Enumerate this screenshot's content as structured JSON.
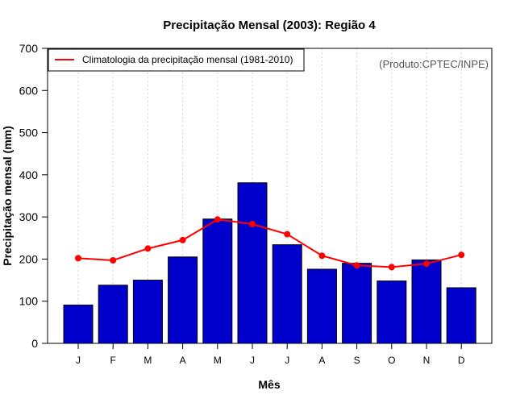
{
  "chart_data": {
    "type": "bar",
    "title": "Precipitação Mensal (2003): Região 4",
    "xlabel": "Mês",
    "ylabel": "Precipitação mensal (mm)",
    "ylim": [
      0,
      700
    ],
    "yticks": [
      0,
      100,
      200,
      300,
      400,
      500,
      600,
      700
    ],
    "categories": [
      "J",
      "F",
      "M",
      "A",
      "M",
      "J",
      "J",
      "A",
      "S",
      "O",
      "N",
      "D"
    ],
    "series": [
      {
        "name": "Precipitação mensal 2003",
        "type": "bar",
        "color": "#0000CD",
        "values": [
          91,
          138,
          150,
          205,
          295,
          381,
          234,
          176,
          190,
          148,
          198,
          132
        ]
      },
      {
        "name": "Climatologia da precipitação mensal (1981-2010)",
        "type": "line",
        "color": "#FF0000",
        "values": [
          202,
          197,
          225,
          245,
          294,
          283,
          259,
          208,
          185,
          181,
          189,
          210
        ]
      }
    ],
    "legend": {
      "position": "top-left",
      "entries": [
        "Climatologia da precipitação mensal (1981-2010)"
      ]
    },
    "annotation": "(Produto:CPTEC/INPE)",
    "grid": "vertical-dotted"
  }
}
